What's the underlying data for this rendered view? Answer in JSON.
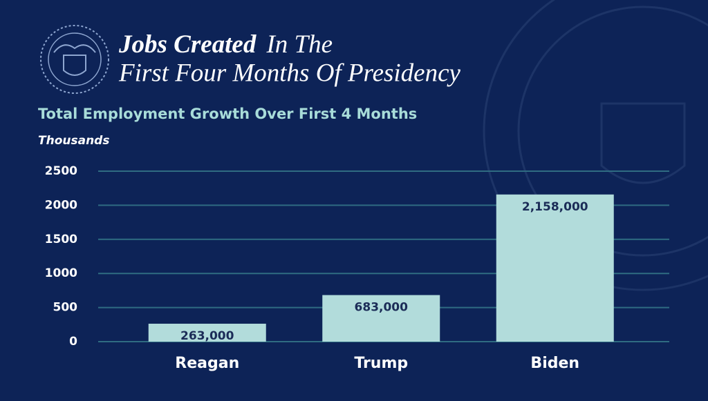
{
  "chart_data": {
    "type": "bar",
    "title": [
      "Jobs Created",
      "In The",
      "First Four Months Of Presidency"
    ],
    "subtitle": "Total Employment Growth Over First 4 Months",
    "y_label": "Thousands",
    "categories": [
      "Reagan",
      "Trump",
      "Biden"
    ],
    "values": [
      263,
      683,
      2158
    ],
    "value_labels": [
      "263,000",
      "683,000",
      "2,158,000"
    ],
    "color": "#b2dcdb",
    "ylim": [
      0,
      2500
    ],
    "yticks": [
      0,
      500,
      1000,
      1500,
      2000,
      2500
    ],
    "grid": true
  }
}
